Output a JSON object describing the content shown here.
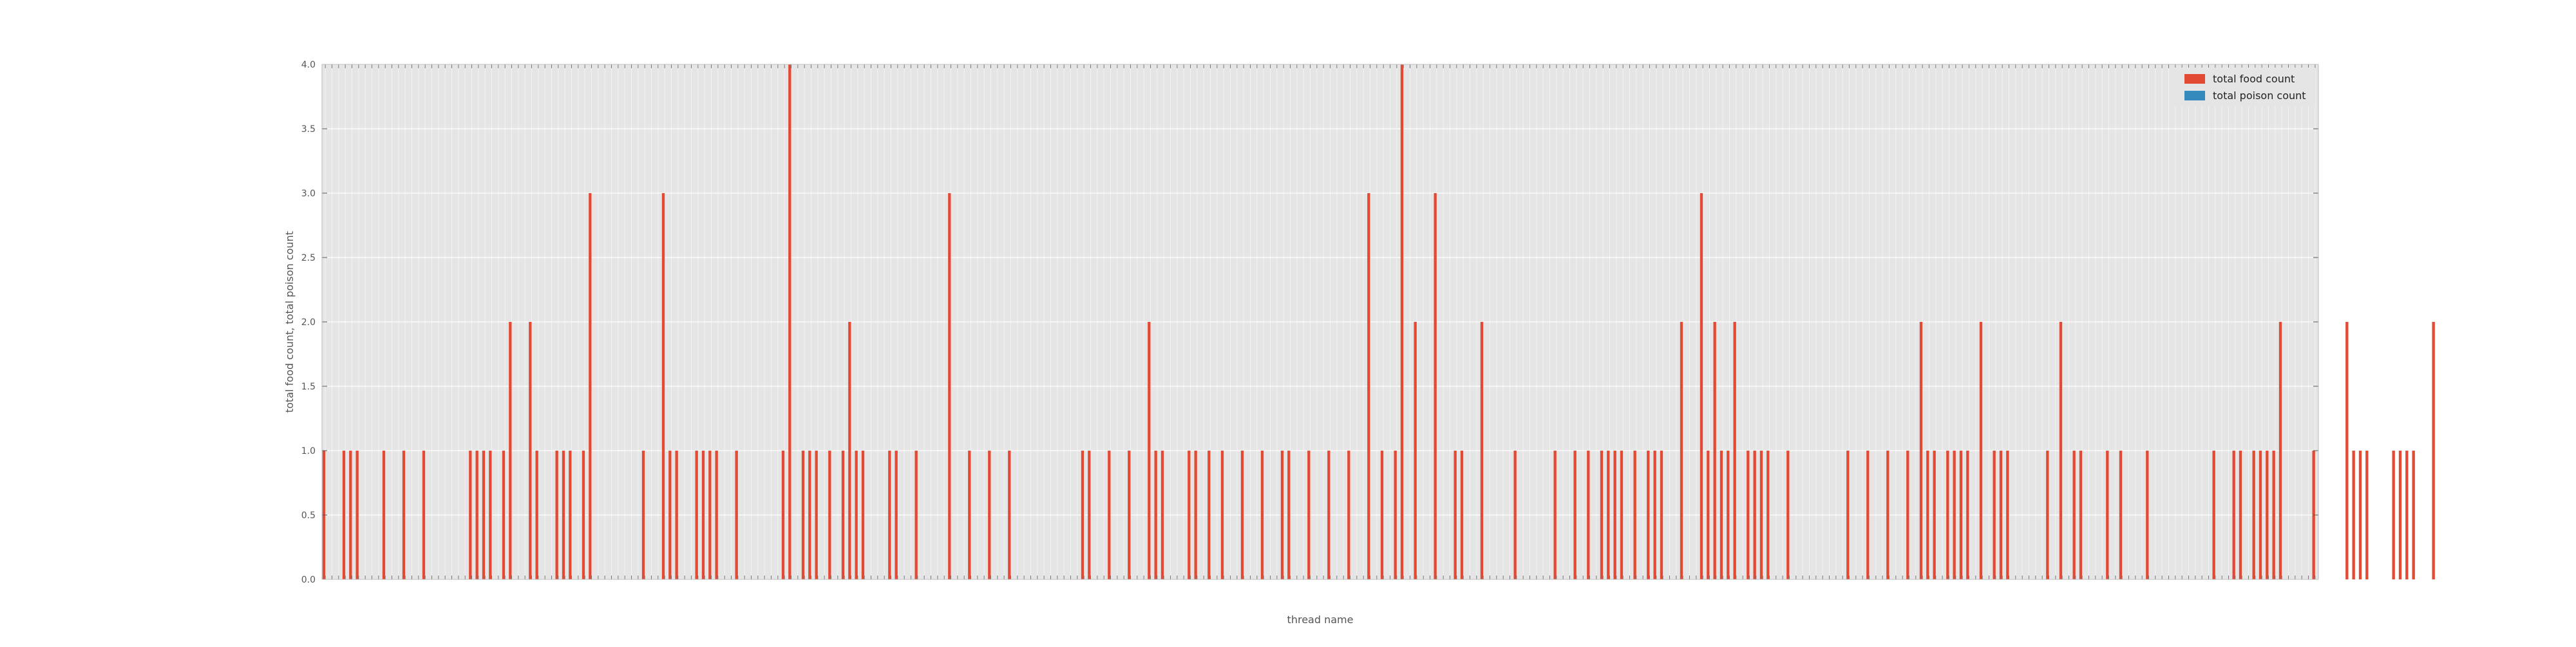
{
  "chart_data": {
    "type": "bar",
    "title": "",
    "xlabel": "thread name",
    "ylabel": "total food count, total poison count",
    "ylim": [
      0,
      4.0
    ],
    "yticks": [
      "0.0",
      "0.5",
      "1.0",
      "1.5",
      "2.0",
      "2.5",
      "3.0",
      "3.5",
      "4.0"
    ],
    "grid": true,
    "legend_position": "top-right",
    "category_count": 300,
    "series": [
      {
        "name": "total food count",
        "color": "#e24a33",
        "values": [
          1,
          0,
          0,
          1,
          1,
          1,
          0,
          0,
          0,
          1,
          0,
          0,
          1,
          0,
          0,
          1,
          0,
          0,
          0,
          0,
          0,
          0,
          1,
          1,
          1,
          1,
          0,
          1,
          2,
          0,
          0,
          2,
          1,
          0,
          0,
          1,
          1,
          1,
          0,
          1,
          3,
          0,
          0,
          0,
          0,
          0,
          0,
          0,
          1,
          0,
          0,
          3,
          1,
          1,
          0,
          0,
          1,
          1,
          1,
          1,
          0,
          0,
          1,
          0,
          0,
          0,
          0,
          0,
          0,
          1,
          4,
          0,
          1,
          1,
          1,
          0,
          1,
          0,
          1,
          2,
          1,
          1,
          0,
          0,
          0,
          1,
          1,
          0,
          0,
          1,
          0,
          0,
          0,
          0,
          3,
          0,
          0,
          1,
          0,
          0,
          1,
          0,
          0,
          1,
          0,
          0,
          0,
          0,
          0,
          0,
          0,
          0,
          0,
          0,
          1,
          1,
          0,
          0,
          1,
          0,
          0,
          1,
          0,
          0,
          2,
          1,
          1,
          0,
          0,
          0,
          1,
          1,
          0,
          1,
          0,
          1,
          0,
          0,
          1,
          0,
          0,
          1,
          0,
          0,
          1,
          1,
          0,
          0,
          1,
          0,
          0,
          1,
          0,
          0,
          1,
          0,
          0,
          3,
          0,
          1,
          0,
          1,
          4,
          0,
          2,
          0,
          0,
          3,
          0,
          0,
          1,
          1,
          0,
          0,
          2,
          0,
          0,
          0,
          0,
          1,
          0,
          0,
          0,
          0,
          0,
          1,
          0,
          0,
          1,
          0,
          1,
          0,
          1,
          1,
          1,
          1,
          0,
          1,
          0,
          1,
          1,
          1,
          0,
          0,
          2,
          0,
          0,
          3,
          1,
          2,
          1,
          1,
          2,
          0,
          1,
          1,
          1,
          1,
          0,
          0,
          1,
          0,
          0,
          0,
          0,
          0,
          0,
          0,
          0,
          1,
          0,
          0,
          1,
          0,
          0,
          1,
          0,
          0,
          1,
          0,
          2,
          1,
          1,
          0,
          1,
          1,
          1,
          1,
          0,
          2,
          0,
          1,
          1,
          1,
          0,
          0,
          0,
          0,
          0,
          1,
          0,
          2,
          0,
          1,
          1,
          0,
          0,
          0,
          1,
          0,
          1,
          0,
          0,
          0,
          1,
          0,
          0,
          0,
          0,
          0,
          0,
          0,
          0,
          0,
          1,
          0,
          0,
          1,
          1,
          0,
          1,
          1,
          1,
          1,
          2,
          0,
          0,
          0,
          0,
          1,
          0,
          0,
          0,
          0,
          2,
          1,
          1,
          1,
          0,
          0,
          0,
          1,
          1,
          1,
          1,
          0,
          0,
          2
        ],
        "note_missing": "fewer than 300 values; remaining categories are zero"
      },
      {
        "name": "total poison count",
        "color": "#348abd",
        "values": []
      }
    ]
  }
}
